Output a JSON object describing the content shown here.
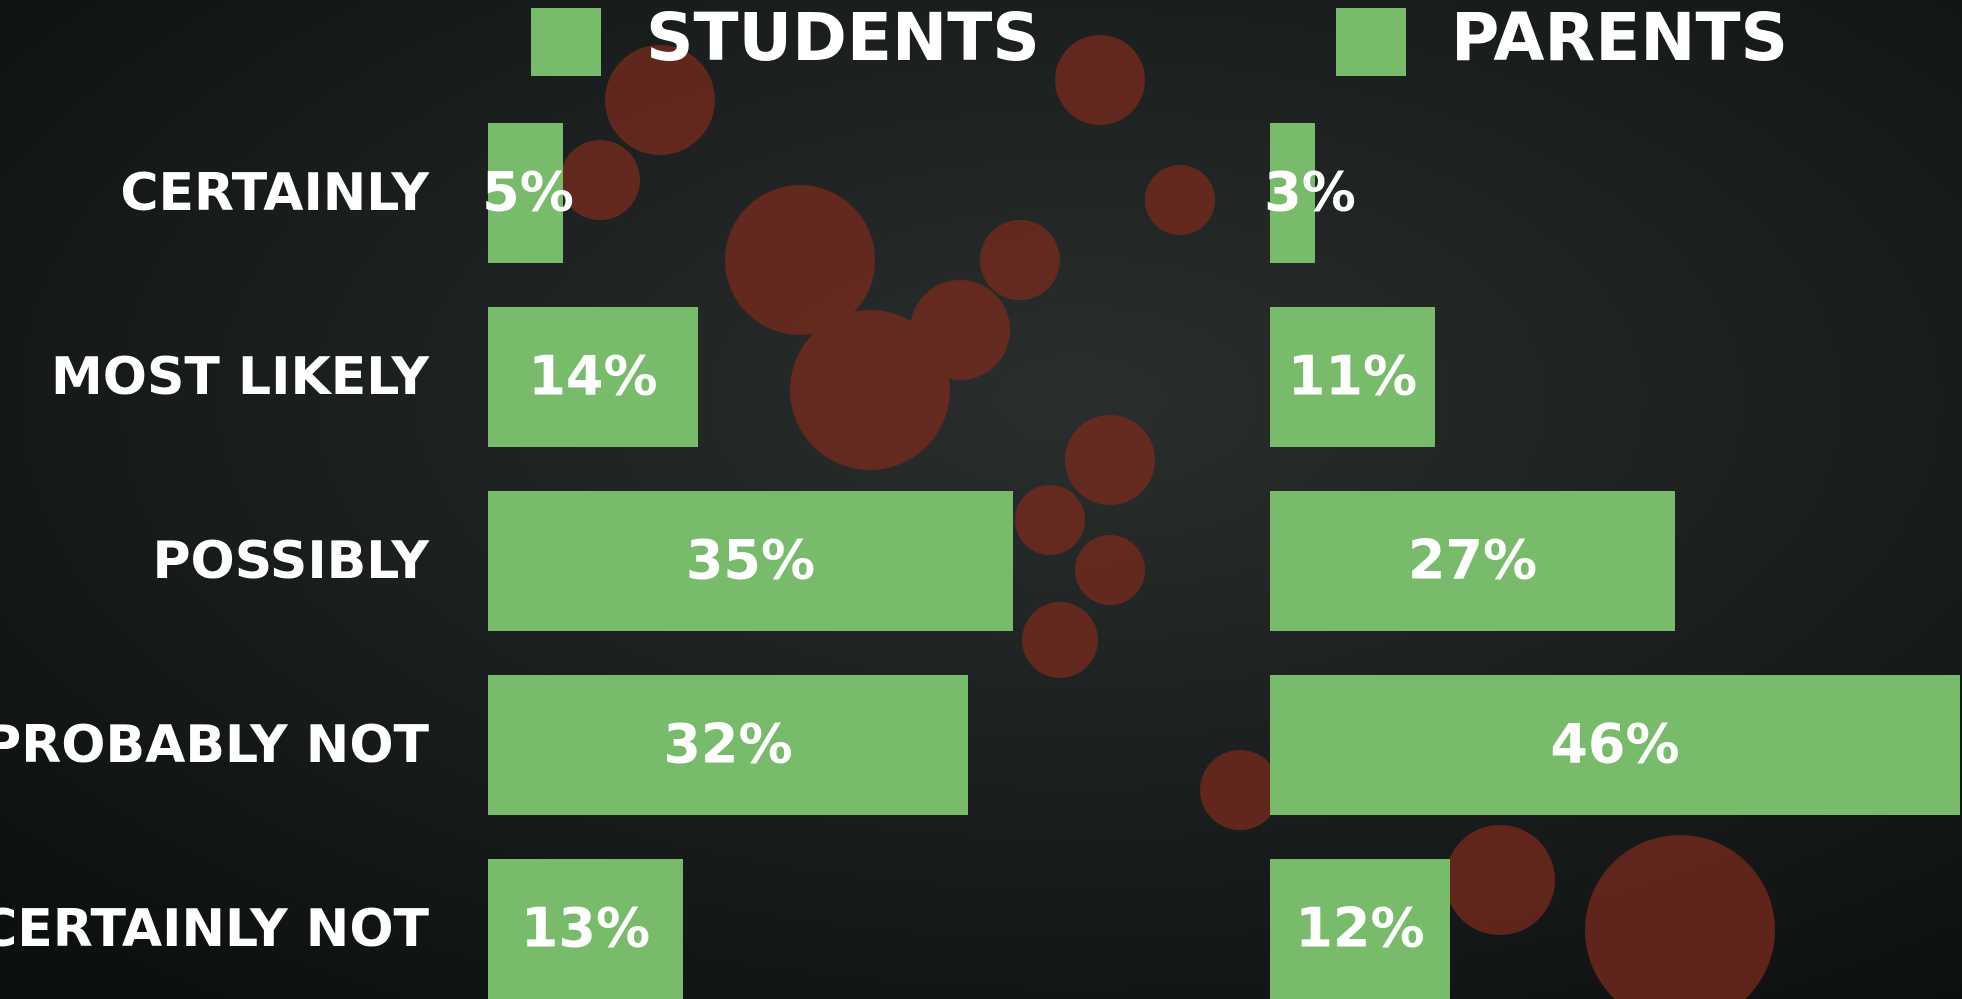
{
  "chart_data": {
    "type": "bar",
    "orientation": "horizontal",
    "categories": [
      "CERTAINLY",
      "MOST LIKELY",
      "POSSIBLY",
      "PROBABLY NOT",
      "CERTAINLY NOT"
    ],
    "series": [
      {
        "name": "STUDENTS",
        "color": "#77bb6b",
        "values": [
          5,
          14,
          35,
          32,
          13
        ],
        "value_labels": [
          "5%",
          "14%",
          "35%",
          "32%",
          "13%"
        ]
      },
      {
        "name": "PARENTS",
        "color": "#77bb6b",
        "values": [
          3,
          11,
          27,
          46,
          12
        ],
        "value_labels": [
          "3%",
          "11%",
          "27%",
          "46%",
          "12%"
        ]
      }
    ]
  }
}
